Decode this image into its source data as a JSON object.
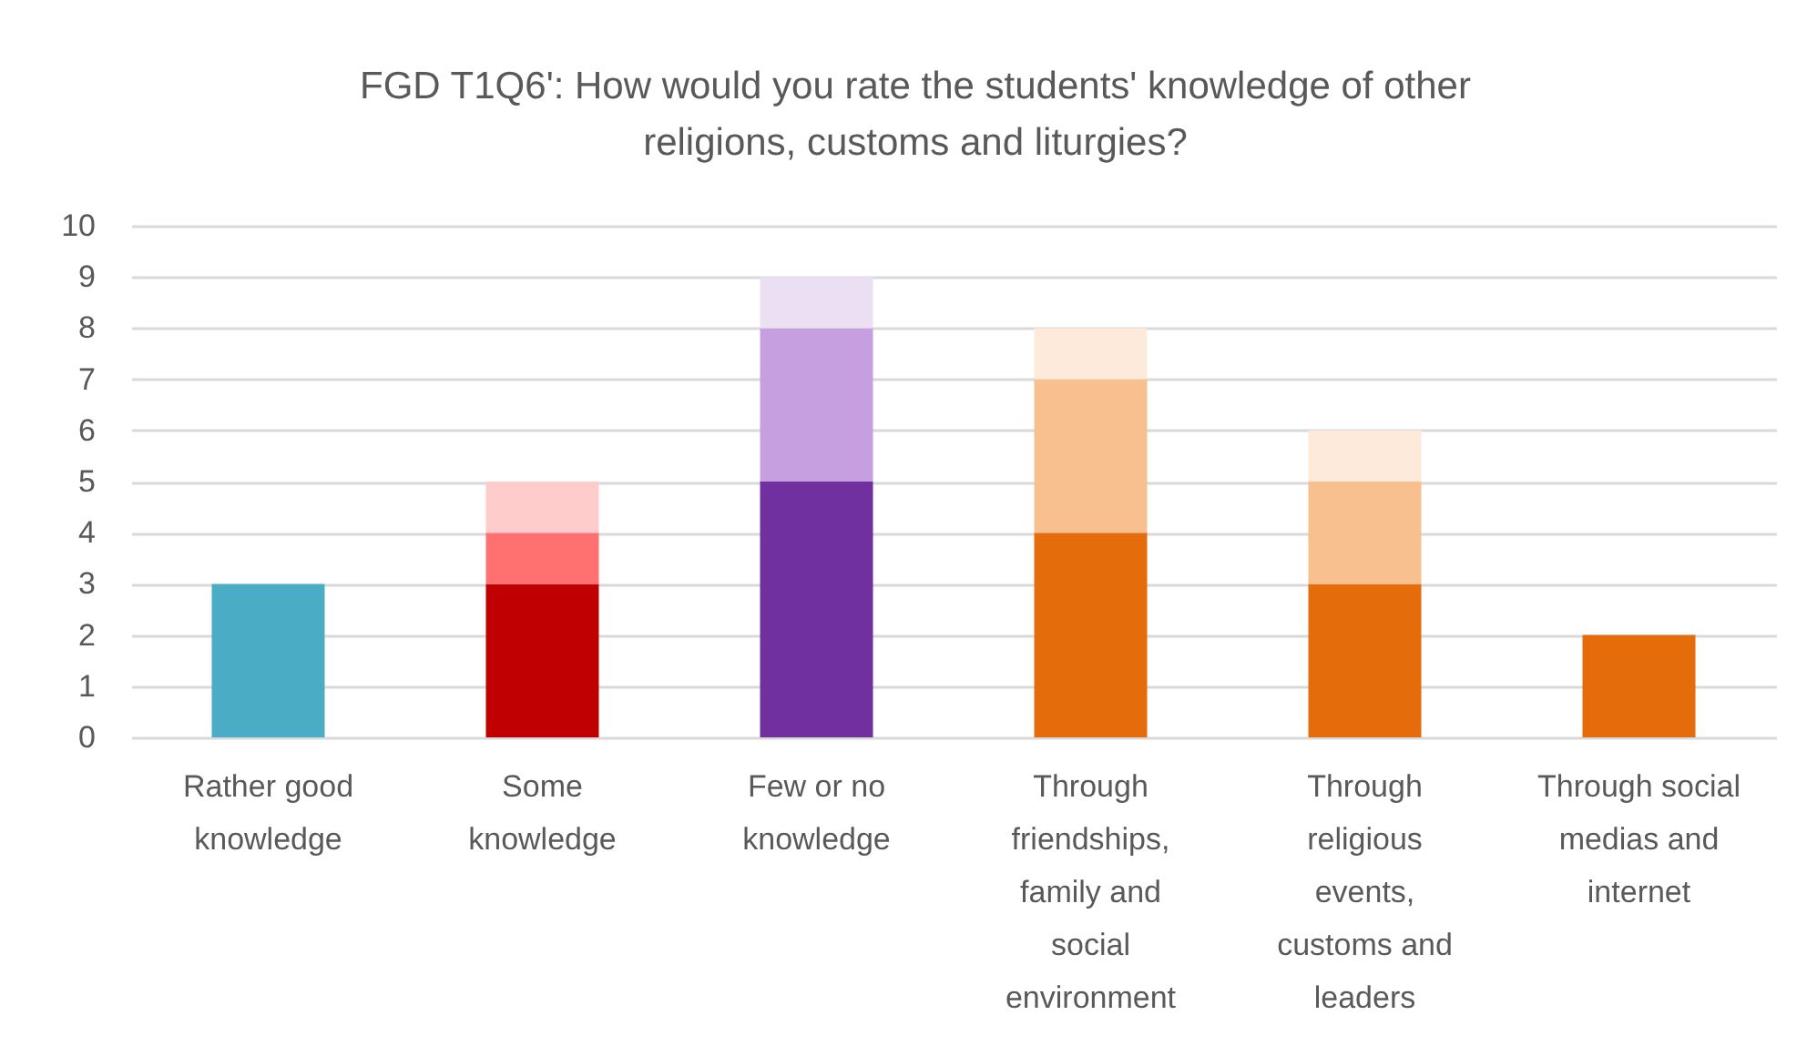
{
  "chart_data": {
    "type": "bar",
    "title": "FGD T1Q6': How would you rate the students' knowledge of other religions, customs and liturgies?",
    "categories": [
      "Rather good knowledge",
      "Some knowledge",
      "Few or no knowledge",
      "Through friendships, family and social environment",
      "Through religious events, customs and leaders",
      "Through social medias and internet"
    ],
    "series": [
      {
        "values": [
          3,
          3,
          5,
          4,
          3,
          2
        ],
        "colors": [
          "#4bacc6",
          "#c00000",
          "#7030a0",
          "#e46c0a",
          "#e46c0a",
          "#e46c0a"
        ]
      },
      {
        "values": [
          null,
          1,
          3,
          3,
          2,
          null
        ],
        "colors": [
          null,
          "#ff7171",
          "#c59fe0",
          "#f9c08f",
          "#f9c08f",
          null
        ]
      },
      {
        "values": [
          null,
          1,
          1,
          1,
          1,
          null
        ],
        "colors": [
          null,
          "#ffcccc",
          "#ebdff3",
          "#fdeada",
          "#fdeada",
          null
        ]
      }
    ],
    "stacked": true,
    "ylim": [
      0,
      10
    ],
    "yticks": [
      0,
      1,
      2,
      3,
      4,
      5,
      6,
      7,
      8,
      9,
      10
    ],
    "grid": "y"
  }
}
